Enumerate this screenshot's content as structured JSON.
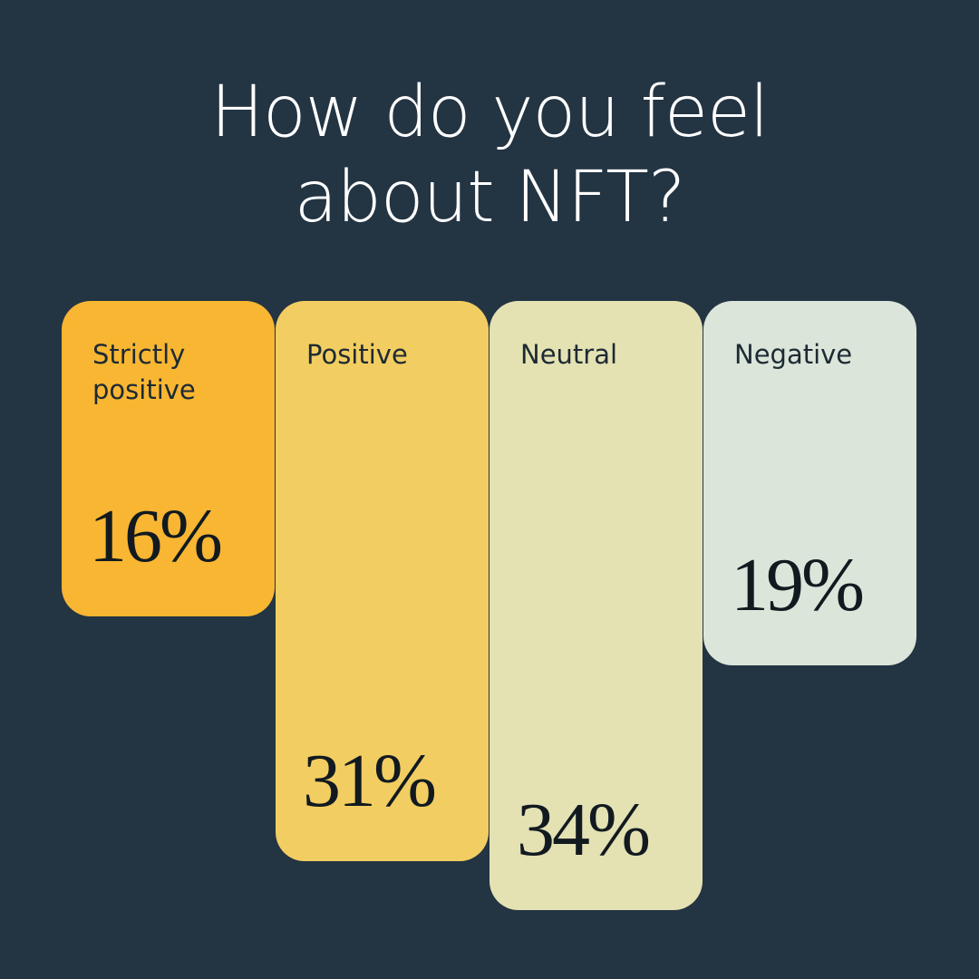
{
  "chart_data": {
    "type": "bar",
    "title": "How do you feel about NFT?",
    "categories": [
      "Strictly positive",
      "Positive",
      "Neutral",
      "Negative"
    ],
    "values": [
      16,
      31,
      34,
      19
    ],
    "value_labels": [
      "16%",
      "31%",
      "34%",
      "19%"
    ],
    "colors": [
      "#f8b632",
      "#f2cd61",
      "#e4e1b3",
      "#dbe5da"
    ]
  }
}
